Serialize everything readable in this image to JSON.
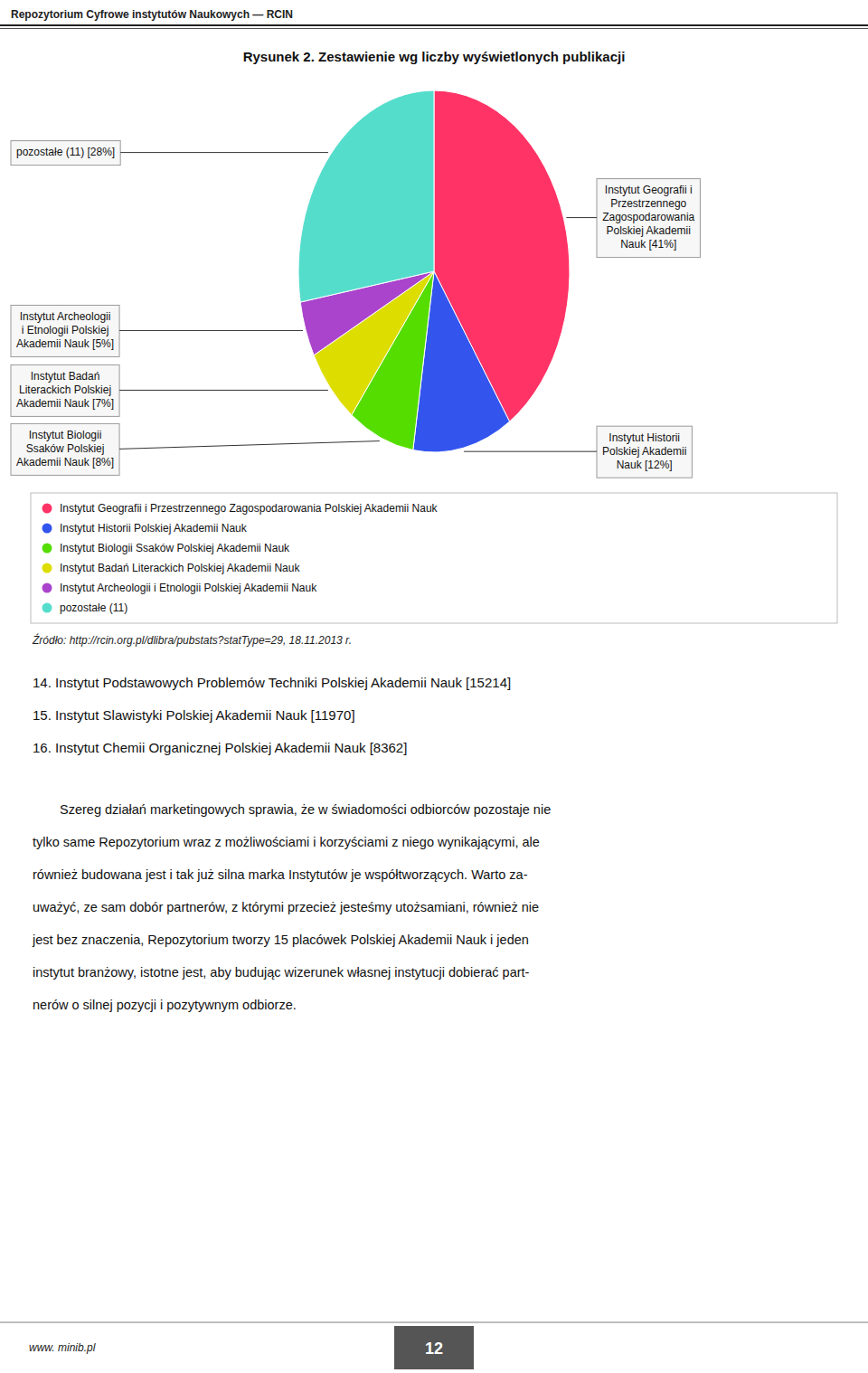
{
  "chart_data": {
    "type": "pie",
    "title": "Rysunek 2. Zestawienie wg liczby wyświetlonych publikacji",
    "categories": [
      "Instytut Geografii i Przestrzennego Zagospodarowania Polskiej Akademii Nauk",
      "Instytut Historii Polskiej Akademii Nauk",
      "Instytut Biologii Ssaków Polskiej Akademii Nauk",
      "Instytut Badań Literackich Polskiej Akademii Nauk",
      "Instytut Archeologii i Etnologii Polskiej Akademii Nauk",
      "pozostałe (11)"
    ],
    "values": [
      41,
      12,
      8,
      7,
      5,
      28
    ],
    "value_labels": [
      "Instytut Geografii i\nPrzestrzennego\nZagospodarowania\nPolskiej Akademii\nNauk [41%]",
      "Instytut Historii\nPolskiej Akademii\nNauk [12%]",
      "Instytut Biologii\nSsaków Polskiej\nAkademii Nauk [8%]",
      "Instytut Badań\nLiterackich Polskiej\nAkademii Nauk [7%]",
      "Instytut Archeologii\ni Etnologii Polskiej\nAkademii Nauk [5%]",
      "pozostałe (11) [28%]"
    ],
    "colors": [
      "#FF3366",
      "#3355EE",
      "#55DD00",
      "#DDDD00",
      "#AA44CC",
      "#55DDCC"
    ],
    "data_labels": true,
    "legend": "bottom",
    "annotations": [
      "Repozytorium Cyfrowe instytutów Naukowych — RCIN",
      "Źródło: http://rcin.org.pl/dlibra/pubstats?statType=29, 18.11.2013 r.",
      "14. Instytut Podstawowych Problemów Techniki Polskiej Akademii Nauk [15214]",
      "15. Instytut Slawistyki Polskiej Akademii Nauk [11970]",
      "16. Instytut Chemii Organicznej Polskiej Akademii Nauk [8362]",
      "Szereg działań marketingowych sprawia, że w świadomości odbiorców pozostaje nie",
      "tylko same Repozytorium wraz z możliwościami i korzyściami z niego wynikającymi, ale",
      "również budowana jest i tak już silna marka Instytutów je współtworzących. Warto za-",
      "uważyć, ze sam dobór partnerów, z którymi przecież jesteśmy utożsamiani, również nie",
      "jest bez znaczenia, Repozytorium tworzy 15 placówek Polskiej Akademii Nauk i jeden",
      "instytut branżowy, istotne jest, aby budując wizerunek własnej instytucji dobierać part-",
      "nerów o silnej pozycji i pozytywnym odbiorze.",
      "www. minib.pl",
      "12"
    ]
  }
}
